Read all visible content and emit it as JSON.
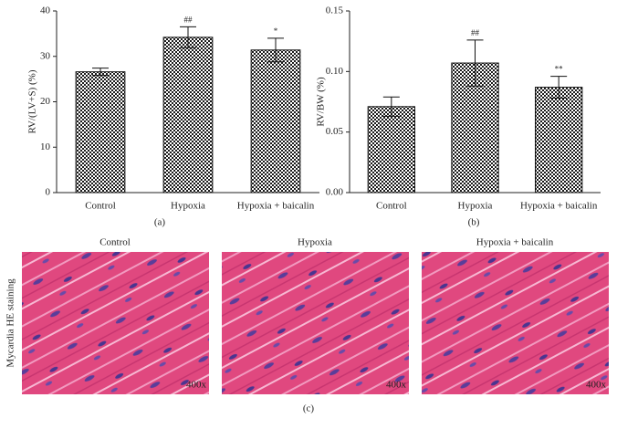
{
  "chart_data": [
    {
      "type": "bar",
      "panel_label": "(a)",
      "y_label": "RV/(LV+S) (%)",
      "categories": [
        "Control",
        "Hypoxia",
        "Hypoxia + baicalin"
      ],
      "values": [
        26.6,
        34.2,
        31.4
      ],
      "errors": [
        0.8,
        2.3,
        2.6
      ],
      "annotations": [
        null,
        "##",
        "*"
      ],
      "color": "#1a1a1a",
      "ylim": [
        0,
        40
      ],
      "yticks": [
        0,
        10,
        20,
        30,
        40
      ]
    },
    {
      "type": "bar",
      "panel_label": "(b)",
      "y_label": "RV/BW (%)",
      "categories": [
        "Control",
        "Hypoxia",
        "Hypoxia + baicalin"
      ],
      "values": [
        0.071,
        0.107,
        0.087
      ],
      "errors": [
        0.008,
        0.019,
        0.009
      ],
      "annotations": [
        null,
        "##",
        "**"
      ],
      "color": "#1a1a1a",
      "ylim": [
        0,
        0.15
      ],
      "yticks": [
        {
          "value": 0,
          "label": "0.00"
        },
        {
          "value": 0.05,
          "label": "0.05"
        },
        {
          "value": 0.1,
          "label": "0.10"
        },
        {
          "value": 0.15,
          "label": "0.15"
        }
      ]
    }
  ],
  "panel_c": {
    "side_label": "Mycardia HE staining",
    "panel_label": "(c)",
    "images": [
      {
        "title": "Control",
        "magnification": "400x"
      },
      {
        "title": "Hypoxia",
        "magnification": "400x"
      },
      {
        "title": "Hypoxia + baicalin",
        "magnification": "400x"
      }
    ]
  }
}
